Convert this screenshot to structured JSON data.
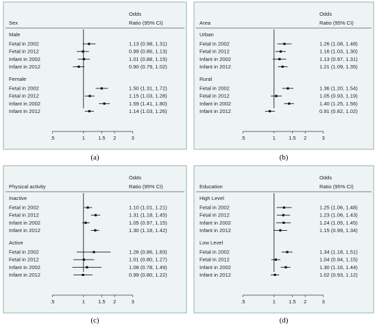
{
  "panel_colors": {
    "background": "#eef4f4",
    "border": "#8fb0b0",
    "marks": "#111111"
  },
  "chart_data": [
    {
      "type": "forest",
      "panel_label": "(a)",
      "subgroup_title": "Sex",
      "col_header_line1": "Odds",
      "col_header_line2": "Ratio (95% CI)",
      "x_scale": "log",
      "xlim": [
        0.42,
        3.3
      ],
      "ticks": [
        0.5,
        1,
        1.5,
        2,
        3
      ],
      "tick_labels": [
        ".5",
        "1",
        "1.5",
        "2",
        "3"
      ],
      "groups": [
        {
          "name": "Male",
          "rows": [
            {
              "label": "Fetal in 2002",
              "or": 1.13,
              "lo": 0.98,
              "hi": 1.31,
              "ci_text": "1.13 (0.98, 1.31)"
            },
            {
              "label": "Fetal in 2012",
              "or": 0.99,
              "lo": 0.86,
              "hi": 1.13,
              "ci_text": "0.99 (0.86, 1.13)"
            },
            {
              "label": "Infant in 2002",
              "or": 1.01,
              "lo": 0.88,
              "hi": 1.15,
              "ci_text": "1.01 (0.88, 1.15)"
            },
            {
              "label": "Infant in 2012",
              "or": 0.9,
              "lo": 0.79,
              "hi": 1.02,
              "ci_text": "0.90 (0.79, 1.02)"
            }
          ]
        },
        {
          "name": "Female",
          "rows": [
            {
              "label": "Fetal in 2002",
              "or": 1.5,
              "lo": 1.31,
              "hi": 1.72,
              "ci_text": "1.50 (1.31, 1.72)"
            },
            {
              "label": "Fetal in 2012",
              "or": 1.15,
              "lo": 1.03,
              "hi": 1.28,
              "ci_text": "1.15 (1.03, 1.28)"
            },
            {
              "label": "Infant in 2002",
              "or": 1.59,
              "lo": 1.41,
              "hi": 1.8,
              "ci_text": "1.59 (1.41, 1.80)"
            },
            {
              "label": "Infant in 2012",
              "or": 1.14,
              "lo": 1.03,
              "hi": 1.26,
              "ci_text": "1.14 (1.03, 1.26)"
            }
          ]
        }
      ]
    },
    {
      "type": "forest",
      "panel_label": "(b)",
      "subgroup_title": "Area",
      "col_header_line1": "Odds",
      "col_header_line2": "Ratio (95% CI)",
      "x_scale": "log",
      "xlim": [
        0.42,
        3.3
      ],
      "ticks": [
        0.5,
        1,
        1.5,
        2,
        3
      ],
      "tick_labels": [
        ".5",
        "1",
        "1.5",
        "2",
        "3"
      ],
      "groups": [
        {
          "name": "Urban",
          "rows": [
            {
              "label": "Fetal in 2002",
              "or": 1.26,
              "lo": 1.08,
              "hi": 1.48,
              "ci_text": "1.26 (1.08, 1.48)"
            },
            {
              "label": "Fetal in 2012",
              "or": 1.16,
              "lo": 1.03,
              "hi": 1.3,
              "ci_text": "1.16 (1.03, 1.30)"
            },
            {
              "label": "Infant in 2002",
              "or": 1.13,
              "lo": 0.97,
              "hi": 1.31,
              "ci_text": "1.13 (0.97, 1.31)"
            },
            {
              "label": "Infant in 2012",
              "or": 1.21,
              "lo": 1.09,
              "hi": 1.35,
              "ci_text": "1.21 (1.09, 1.35)"
            }
          ]
        },
        {
          "name": "Rural",
          "rows": [
            {
              "label": "Fetal in 2002",
              "or": 1.36,
              "lo": 1.2,
              "hi": 1.54,
              "ci_text": "1.36 (1.20, 1.54)"
            },
            {
              "label": "Fetal in 2012",
              "or": 1.05,
              "lo": 0.93,
              "hi": 1.19,
              "ci_text": "1.05 (0.93, 1.19)"
            },
            {
              "label": "Infant in 2002",
              "or": 1.4,
              "lo": 1.25,
              "hi": 1.56,
              "ci_text": "1.40 (1.25, 1.56)"
            },
            {
              "label": "Infant in 2012",
              "or": 0.91,
              "lo": 0.82,
              "hi": 1.02,
              "ci_text": "0.91 (0.82, 1.02)"
            }
          ]
        }
      ]
    },
    {
      "type": "forest",
      "panel_label": "(c)",
      "subgroup_title": "Physical activity",
      "col_header_line1": "Odds",
      "col_header_line2": "Ratio (95% CI)",
      "x_scale": "log",
      "xlim": [
        0.42,
        3.3
      ],
      "ticks": [
        0.5,
        1,
        1.5,
        2,
        3
      ],
      "tick_labels": [
        ".5",
        "1",
        "1.5",
        "2",
        "3"
      ],
      "groups": [
        {
          "name": "Inactive",
          "rows": [
            {
              "label": "Fetal in 2002",
              "or": 1.1,
              "lo": 1.01,
              "hi": 1.21,
              "ci_text": "1.10 (1.01, 1.21)"
            },
            {
              "label": "Fetal in 2012",
              "or": 1.31,
              "lo": 1.18,
              "hi": 1.45,
              "ci_text": "1.31 (1.18, 1.45)"
            },
            {
              "label": "Infant in 2002",
              "or": 1.05,
              "lo": 0.97,
              "hi": 1.15,
              "ci_text": "1.05 (0.97, 1.15)"
            },
            {
              "label": "Infant in 2012",
              "or": 1.3,
              "lo": 1.18,
              "hi": 1.42,
              "ci_text": "1.30 (1.18, 1.42)"
            }
          ]
        },
        {
          "name": "Active",
          "rows": [
            {
              "label": "Fetal in 2002",
              "or": 1.26,
              "lo": 0.86,
              "hi": 1.83,
              "ci_text": "1.26 (0.86, 1.83)"
            },
            {
              "label": "Fetal in 2012",
              "or": 1.01,
              "lo": 0.8,
              "hi": 1.27,
              "ci_text": "1.01 (0.80, 1.27)"
            },
            {
              "label": "Infant in 2002",
              "or": 1.08,
              "lo": 0.78,
              "hi": 1.49,
              "ci_text": "1.08 (0.78, 1.49)"
            },
            {
              "label": "Infant in 2012",
              "or": 0.99,
              "lo": 0.8,
              "hi": 1.22,
              "ci_text": "0.99 (0.80, 1.22)"
            }
          ]
        }
      ]
    },
    {
      "type": "forest",
      "panel_label": "(d)",
      "subgroup_title": "Education",
      "col_header_line1": "Odds",
      "col_header_line2": "Ratio (95% CI)",
      "x_scale": "log",
      "xlim": [
        0.42,
        3.3
      ],
      "ticks": [
        0.5,
        1,
        1.5,
        2,
        3
      ],
      "tick_labels": [
        ".5",
        "1",
        "1.5",
        "2",
        "3"
      ],
      "groups": [
        {
          "name": "High Level",
          "rows": [
            {
              "label": "Fetal in 2002",
              "or": 1.25,
              "lo": 1.06,
              "hi": 1.48,
              "ci_text": "1.25 (1.06, 1.48)"
            },
            {
              "label": "Fetal in 2012",
              "or": 1.23,
              "lo": 1.06,
              "hi": 1.43,
              "ci_text": "1.23 (1.06, 1.43)"
            },
            {
              "label": "Infant in 2002",
              "or": 1.24,
              "lo": 1.05,
              "hi": 1.45,
              "ci_text": "1.24 (1.05, 1.45)"
            },
            {
              "label": "Infant in 2012",
              "or": 1.15,
              "lo": 0.99,
              "hi": 1.34,
              "ci_text": "1.15 (0.99, 1.34)"
            }
          ]
        },
        {
          "name": "Low Level",
          "rows": [
            {
              "label": "Fetal in 2002",
              "or": 1.34,
              "lo": 1.18,
              "hi": 1.51,
              "ci_text": "1.34 (1.18, 1.51)"
            },
            {
              "label": "Fetal in 2012",
              "or": 1.04,
              "lo": 0.94,
              "hi": 1.15,
              "ci_text": "1.04 (0.94, 1.15)"
            },
            {
              "label": "Infant in 2002",
              "or": 1.3,
              "lo": 1.16,
              "hi": 1.44,
              "ci_text": "1.30 (1.16, 1.44)"
            },
            {
              "label": "Infant in 2012",
              "or": 1.02,
              "lo": 0.93,
              "hi": 1.12,
              "ci_text": "1.02 (0.93, 1.12)"
            }
          ]
        }
      ]
    }
  ]
}
